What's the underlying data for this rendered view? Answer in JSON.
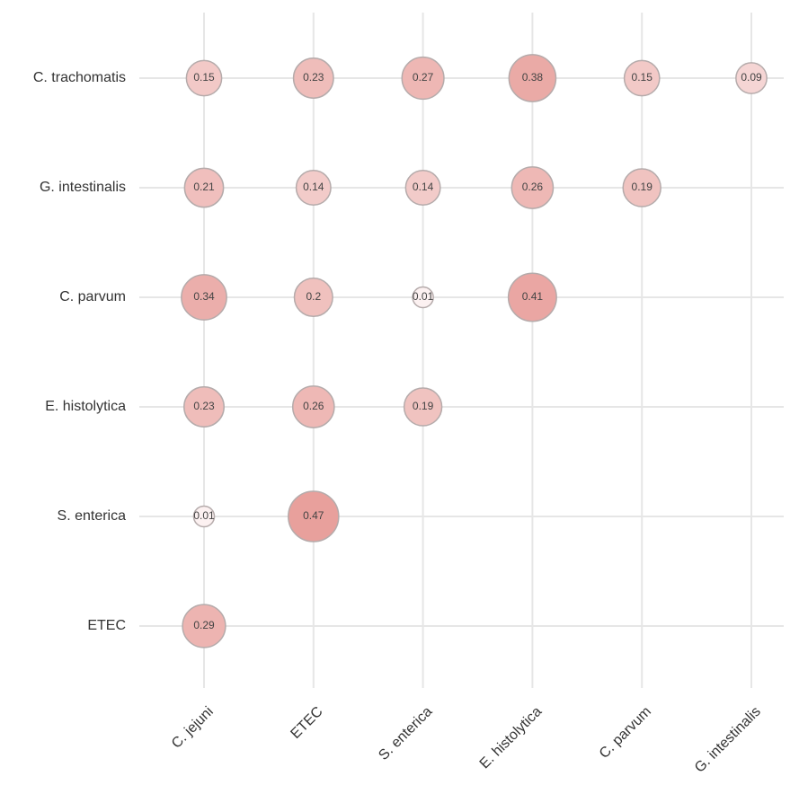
{
  "chart_data": {
    "type": "bubble_matrix",
    "x_categories": [
      "C. jejuni",
      "ETEC",
      "S. enterica",
      "E. histolytica",
      "C. parvum",
      "G. intestinalis"
    ],
    "y_categories": [
      "C. trachomatis",
      "G. intestinalis",
      "C. parvum",
      "E. histolytica",
      "S. enterica",
      "ETEC"
    ],
    "values": [
      [
        0.15,
        0.23,
        0.27,
        0.38,
        0.15,
        0.09
      ],
      [
        0.21,
        0.14,
        0.14,
        0.26,
        0.19,
        null
      ],
      [
        0.34,
        0.2,
        0.01,
        0.41,
        null,
        null
      ],
      [
        0.23,
        0.26,
        0.19,
        null,
        null,
        null
      ],
      [
        0.01,
        0.47,
        null,
        null,
        null,
        null
      ],
      [
        0.29,
        null,
        null,
        null,
        null,
        null
      ]
    ],
    "color": "#e8a09c",
    "grid": true
  }
}
